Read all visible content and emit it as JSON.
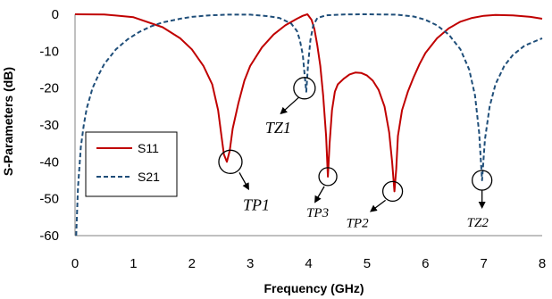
{
  "chart_data": {
    "type": "line",
    "xlabel": "Frequency (GHz)",
    "ylabel": "S-Parameters (dB)",
    "xlim": [
      0,
      8
    ],
    "ylim": [
      -60,
      0
    ],
    "xticks": [
      "0",
      "1",
      "2",
      "3",
      "4",
      "5",
      "6",
      "7",
      "8"
    ],
    "yticks": [
      "0",
      "-10",
      "-20",
      "-30",
      "-40",
      "-50",
      "-60"
    ],
    "grid": false,
    "legend_position": "center-left",
    "series": [
      {
        "name": "S11",
        "color": "#c00000",
        "style": "solid",
        "points": [
          [
            0,
            0
          ],
          [
            0.5,
            -0.05
          ],
          [
            1.0,
            -0.8
          ],
          [
            1.5,
            -3.5
          ],
          [
            1.8,
            -6.5
          ],
          [
            2.0,
            -9.5
          ],
          [
            2.2,
            -14
          ],
          [
            2.35,
            -19
          ],
          [
            2.45,
            -26
          ],
          [
            2.5,
            -32
          ],
          [
            2.55,
            -38
          ],
          [
            2.6,
            -40
          ],
          [
            2.65,
            -37
          ],
          [
            2.7,
            -31
          ],
          [
            2.8,
            -24
          ],
          [
            2.9,
            -18
          ],
          [
            3.0,
            -14
          ],
          [
            3.2,
            -9
          ],
          [
            3.4,
            -5.5
          ],
          [
            3.6,
            -3
          ],
          [
            3.8,
            -1.2
          ],
          [
            3.9,
            -0.4
          ],
          [
            3.98,
            0
          ],
          [
            4.05,
            -1.5
          ],
          [
            4.1,
            -4
          ],
          [
            4.15,
            -8.5
          ],
          [
            4.2,
            -14
          ],
          [
            4.25,
            -22
          ],
          [
            4.3,
            -33
          ],
          [
            4.33,
            -44
          ],
          [
            4.36,
            -35
          ],
          [
            4.4,
            -26
          ],
          [
            4.45,
            -21
          ],
          [
            4.5,
            -19
          ],
          [
            4.6,
            -17.5
          ],
          [
            4.7,
            -16.3
          ],
          [
            4.8,
            -15.8
          ],
          [
            4.9,
            -15.9
          ],
          [
            5.0,
            -16.6
          ],
          [
            5.1,
            -18
          ],
          [
            5.2,
            -20.5
          ],
          [
            5.3,
            -25
          ],
          [
            5.38,
            -32
          ],
          [
            5.43,
            -40
          ],
          [
            5.47,
            -48
          ],
          [
            5.5,
            -42
          ],
          [
            5.53,
            -33
          ],
          [
            5.6,
            -26
          ],
          [
            5.7,
            -21
          ],
          [
            5.8,
            -17
          ],
          [
            5.9,
            -13.5
          ],
          [
            6.0,
            -10.5
          ],
          [
            6.2,
            -6.5
          ],
          [
            6.4,
            -3.8
          ],
          [
            6.6,
            -2
          ],
          [
            6.8,
            -1
          ],
          [
            7.0,
            -0.4
          ],
          [
            7.2,
            -0.2
          ],
          [
            7.5,
            -0.3
          ],
          [
            7.8,
            -0.7
          ],
          [
            8.0,
            -1.2
          ]
        ]
      },
      {
        "name": "S21",
        "color": "#1f4e79",
        "style": "dashed",
        "points": [
          [
            0.02,
            -60
          ],
          [
            0.05,
            -47
          ],
          [
            0.1,
            -36
          ],
          [
            0.15,
            -30
          ],
          [
            0.2,
            -25.5
          ],
          [
            0.3,
            -20
          ],
          [
            0.4,
            -16.5
          ],
          [
            0.5,
            -13.5
          ],
          [
            0.7,
            -9.5
          ],
          [
            0.9,
            -6.8
          ],
          [
            1.1,
            -4.8
          ],
          [
            1.3,
            -3.3
          ],
          [
            1.5,
            -2.2
          ],
          [
            1.8,
            -1.2
          ],
          [
            2.0,
            -0.7
          ],
          [
            2.3,
            -0.3
          ],
          [
            2.6,
            -0.1
          ],
          [
            3.0,
            -0.1
          ],
          [
            3.3,
            -0.5
          ],
          [
            3.5,
            -1
          ],
          [
            3.7,
            -2.5
          ],
          [
            3.8,
            -4.5
          ],
          [
            3.85,
            -7
          ],
          [
            3.9,
            -11
          ],
          [
            3.93,
            -16
          ],
          [
            3.96,
            -21
          ],
          [
            3.99,
            -14
          ],
          [
            4.03,
            -7
          ],
          [
            4.08,
            -3
          ],
          [
            4.15,
            -1
          ],
          [
            4.3,
            -0.3
          ],
          [
            4.6,
            -0.05
          ],
          [
            5.0,
            0
          ],
          [
            5.5,
            -0.1
          ],
          [
            5.8,
            -0.6
          ],
          [
            6.0,
            -1.5
          ],
          [
            6.2,
            -3
          ],
          [
            6.4,
            -5.5
          ],
          [
            6.6,
            -9.5
          ],
          [
            6.75,
            -15
          ],
          [
            6.85,
            -22
          ],
          [
            6.92,
            -32
          ],
          [
            6.97,
            -45
          ],
          [
            7.02,
            -34
          ],
          [
            7.1,
            -25
          ],
          [
            7.2,
            -19
          ],
          [
            7.35,
            -14
          ],
          [
            7.5,
            -11
          ],
          [
            7.7,
            -8.5
          ],
          [
            8.0,
            -6.5
          ]
        ]
      }
    ],
    "annotations": [
      {
        "label": "TP1",
        "x": 2.6,
        "y": -40
      },
      {
        "label": "TZ1",
        "x": 3.96,
        "y": -21
      },
      {
        "label": "TP3",
        "x": 4.33,
        "y": -44
      },
      {
        "label": "TP2",
        "x": 5.47,
        "y": -48
      },
      {
        "label": "TZ2",
        "x": 6.97,
        "y": -45
      }
    ]
  }
}
